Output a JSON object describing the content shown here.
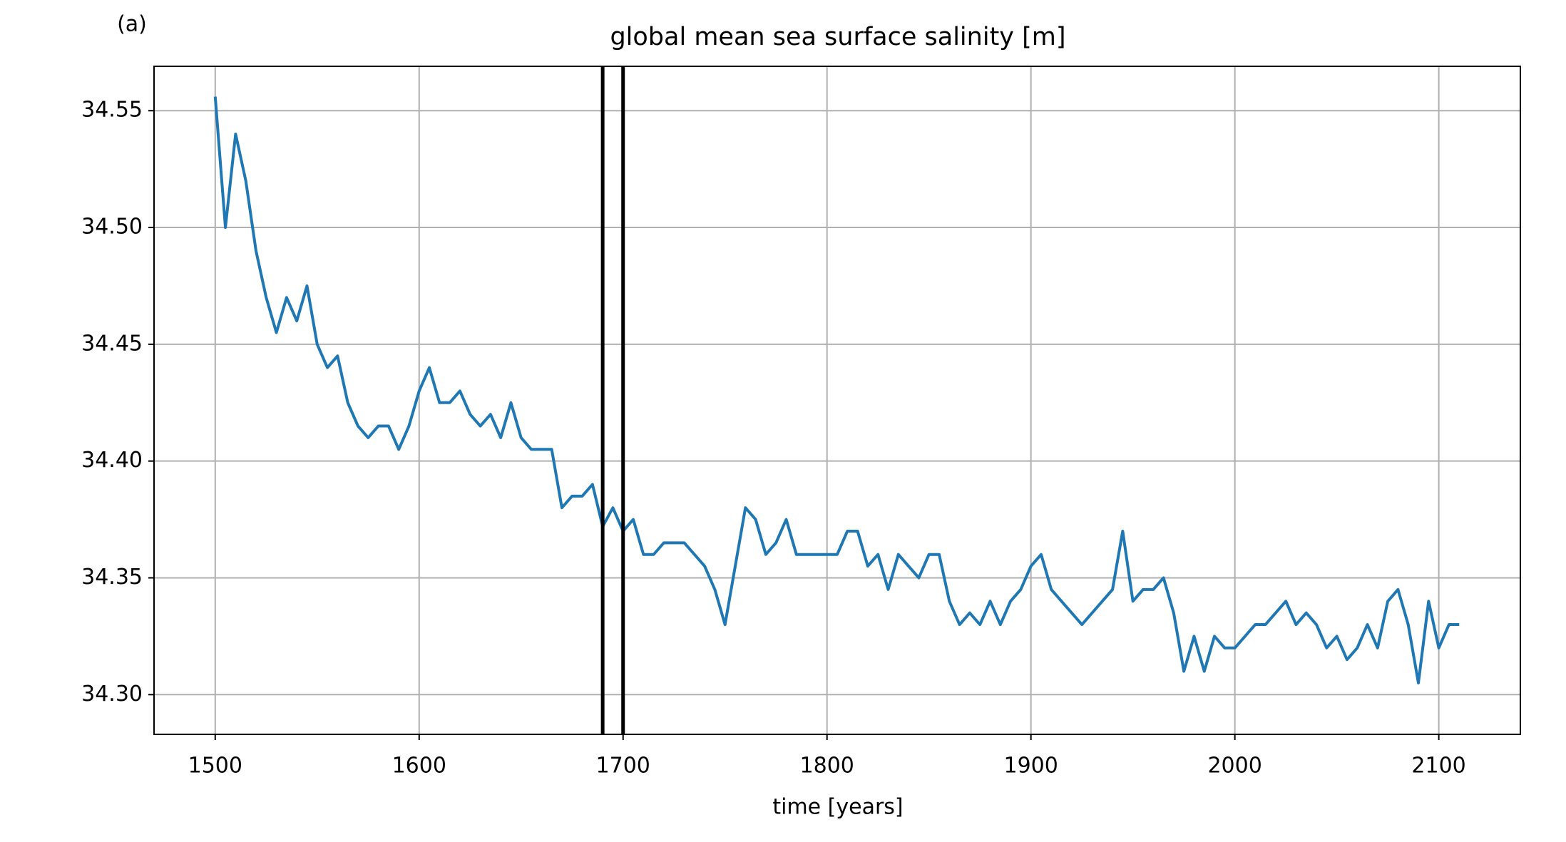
{
  "chart_data": {
    "type": "line",
    "title": "global mean sea surface salinity [m]",
    "annotation": "(a)",
    "xlabel": "time [years]",
    "x": [
      1500,
      1505,
      1510,
      1515,
      1520,
      1525,
      1530,
      1535,
      1540,
      1545,
      1550,
      1555,
      1560,
      1565,
      1570,
      1575,
      1580,
      1585,
      1590,
      1595,
      1600,
      1605,
      1610,
      1615,
      1620,
      1625,
      1630,
      1635,
      1640,
      1645,
      1650,
      1655,
      1660,
      1665,
      1670,
      1675,
      1680,
      1685,
      1690,
      1695,
      1700,
      1705,
      1710,
      1715,
      1720,
      1725,
      1730,
      1735,
      1740,
      1745,
      1750,
      1755,
      1760,
      1765,
      1770,
      1775,
      1780,
      1785,
      1790,
      1795,
      1800,
      1805,
      1810,
      1815,
      1820,
      1825,
      1830,
      1835,
      1840,
      1845,
      1850,
      1855,
      1860,
      1865,
      1870,
      1875,
      1880,
      1885,
      1890,
      1895,
      1900,
      1905,
      1910,
      1915,
      1920,
      1925,
      1930,
      1935,
      1940,
      1945,
      1950,
      1955,
      1960,
      1965,
      1970,
      1975,
      1980,
      1985,
      1990,
      1995,
      2000,
      2005,
      2010,
      2015,
      2020,
      2025,
      2030,
      2035,
      2040,
      2045,
      2050,
      2055,
      2060,
      2065,
      2070,
      2075,
      2080,
      2085,
      2090,
      2095,
      2100,
      2105,
      2110
    ],
    "series": [
      {
        "name": "salinity",
        "color": "#1f77b4",
        "values": [
          34.556,
          34.5,
          34.54,
          34.52,
          34.49,
          34.47,
          34.455,
          34.47,
          34.46,
          34.475,
          34.45,
          34.44,
          34.445,
          34.425,
          34.415,
          34.41,
          34.415,
          34.415,
          34.405,
          34.415,
          34.43,
          34.44,
          34.425,
          34.425,
          34.43,
          34.42,
          34.415,
          34.42,
          34.41,
          34.425,
          34.41,
          34.405,
          34.405,
          34.405,
          34.38,
          34.385,
          34.385,
          34.39,
          34.372,
          34.38,
          34.37,
          34.375,
          34.36,
          34.36,
          34.365,
          34.365,
          34.365,
          34.36,
          34.355,
          34.345,
          34.33,
          34.355,
          34.38,
          34.375,
          34.36,
          34.365,
          34.375,
          34.36,
          34.36,
          34.36,
          34.36,
          34.36,
          34.37,
          34.37,
          34.355,
          34.36,
          34.345,
          34.36,
          34.355,
          34.35,
          34.36,
          34.36,
          34.34,
          34.33,
          34.335,
          34.33,
          34.34,
          34.33,
          34.34,
          34.345,
          34.355,
          34.36,
          34.345,
          34.34,
          34.335,
          34.33,
          34.335,
          34.34,
          34.345,
          34.37,
          34.34,
          34.345,
          34.345,
          34.35,
          34.335,
          34.31,
          34.325,
          34.31,
          34.325,
          34.32,
          34.32,
          34.325,
          34.33,
          34.33,
          34.335,
          34.34,
          34.33,
          34.335,
          34.33,
          34.32,
          34.325,
          34.315,
          34.32,
          34.33,
          34.32,
          34.34,
          34.345,
          34.33,
          34.305,
          34.34,
          34.32,
          34.33,
          34.33
        ]
      }
    ],
    "vlines": [
      1690,
      1700
    ],
    "vline_color": "#000000",
    "xlim": [
      1470,
      2140
    ],
    "xticks": [
      1500,
      1600,
      1700,
      1800,
      1900,
      2000,
      2100
    ],
    "ylim": [
      34.283,
      34.569
    ],
    "yticks": [
      {
        "value": 34.3,
        "label": "34.30"
      },
      34.35,
      {
        "value": 34.4,
        "label": "34.40"
      },
      34.45,
      {
        "value": 34.5,
        "label": "34.50"
      },
      34.55
    ],
    "grid": true
  }
}
